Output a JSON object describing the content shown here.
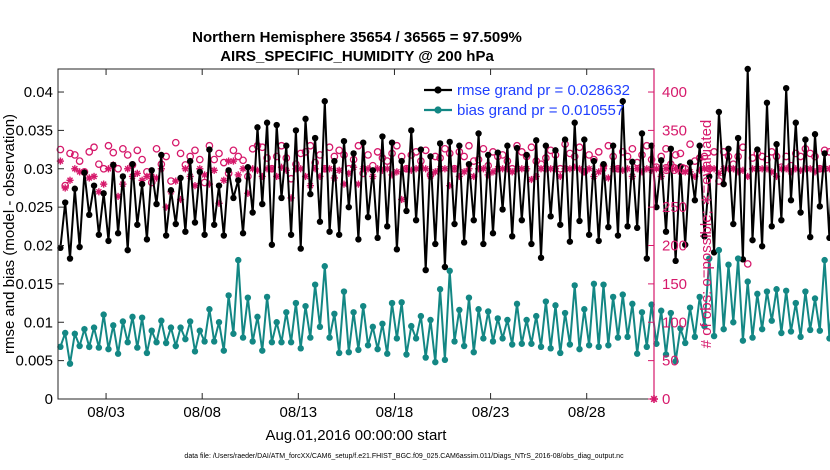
{
  "chart_data": {
    "type": "line",
    "title": "Northern Hemisphere 35654 / 36565 = 97.509%",
    "subtitle": "AIRS_SPECIFIC_HUMIDITY @ 200 hPa",
    "xlabel": "Aug.01,2016 00:00:00 start",
    "ylabel_left": "rmse and bias (model - observation)",
    "ylabel_right": "# of obs: o=possible; ∗=evaluated",
    "footer": "data file: /Users/raeder/DAI/ATM_forcXX/CAM6_setup/f.e21.FHIST_BGC.f09_025.CAM6assim.011/Diags_NTrS_2016-08/obs_diag_output.nc",
    "x_range": [
      0.0,
      31.0
    ],
    "x_ticks": [
      2.5,
      7.5,
      12.5,
      17.5,
      22.5,
      27.5
    ],
    "x_tick_labels": [
      "08/03",
      "08/08",
      "08/13",
      "08/18",
      "08/23",
      "08/28"
    ],
    "ylim_left": [
      0,
      0.043
    ],
    "y_ticks_left": [
      0,
      0.005,
      0.01,
      0.015,
      0.02,
      0.025,
      0.03,
      0.035,
      0.04
    ],
    "y_tick_labels_left": [
      "0",
      "0.005",
      "0.01",
      "0.015",
      "0.02",
      "0.025",
      "0.03",
      "0.035",
      "0.04"
    ],
    "ylim_right": [
      0,
      430
    ],
    "y_ticks_right": [
      0,
      50,
      100,
      150,
      200,
      250,
      300,
      350,
      400
    ],
    "y_tick_labels_right": [
      "0",
      "50",
      "100",
      "150",
      "200",
      "250",
      "300",
      "350",
      "400"
    ],
    "legend": [
      {
        "label": "rmse grand pr = 0.028632",
        "color": "#000000"
      },
      {
        "label": "bias grand pr = 0.010557",
        "color": "#138784"
      }
    ],
    "colors": {
      "rmse": "#000000",
      "bias": "#138784",
      "obs": "#d6196b",
      "axis_right": "#d6196b"
    },
    "series": [
      {
        "name": "rmse",
        "axis": "left",
        "x_start": 0.125,
        "x_step": 0.25,
        "values": [
          0.0197,
          0.0256,
          0.0183,
          0.0274,
          0.0198,
          0.0295,
          0.024,
          0.0278,
          0.0214,
          0.0268,
          0.0206,
          0.0305,
          0.0216,
          0.029,
          0.0194,
          0.0306,
          0.0227,
          0.028,
          0.0208,
          0.0298,
          0.0254,
          0.0318,
          0.0213,
          0.0272,
          0.0228,
          0.0288,
          0.0218,
          0.031,
          0.023,
          0.0296,
          0.0214,
          0.0325,
          0.0227,
          0.0278,
          0.0213,
          0.0298,
          0.0262,
          0.0285,
          0.0216,
          0.0302,
          0.0243,
          0.0354,
          0.0254,
          0.036,
          0.0201,
          0.0357,
          0.0262,
          0.033,
          0.0214,
          0.035,
          0.0196,
          0.0365,
          0.0267,
          0.034,
          0.0231,
          0.0388,
          0.0218,
          0.031,
          0.0214,
          0.0336,
          0.025,
          0.032,
          0.0208,
          0.0334,
          0.0237,
          0.0298,
          0.021,
          0.0342,
          0.0225,
          0.0334,
          0.0195,
          0.031,
          0.0245,
          0.035,
          0.0233,
          0.0325,
          0.0168,
          0.0316,
          0.0202,
          0.0333,
          0.0172,
          0.0335,
          0.0228,
          0.033,
          0.0204,
          0.0306,
          0.0233,
          0.0346,
          0.0202,
          0.0318,
          0.0216,
          0.0321,
          0.0247,
          0.033,
          0.0212,
          0.0327,
          0.0233,
          0.0318,
          0.0202,
          0.0337,
          0.0184,
          0.033,
          0.0238,
          0.0324,
          0.0227,
          0.0338,
          0.0205,
          0.036,
          0.0232,
          0.0338,
          0.0214,
          0.031,
          0.0206,
          0.0306,
          0.0224,
          0.033,
          0.0213,
          0.0388,
          0.0225,
          0.0309,
          0.0223,
          0.0346,
          0.0183,
          0.033,
          0.025,
          0.0311,
          0.0218,
          0.0326,
          0.018,
          0.0303,
          0.0201,
          0.0308,
          0.0259,
          0.033,
          0.0212,
          0.029,
          0.0191,
          0.0374,
          0.028,
          0.0326,
          0.0228,
          0.034,
          0.0182,
          0.043,
          0.0207,
          0.0325,
          0.0199,
          0.0386,
          0.0225,
          0.0332,
          0.0233,
          0.0405,
          0.0259,
          0.036,
          0.0243,
          0.0338,
          0.0211,
          0.0345,
          0.0251,
          0.032,
          0.021,
          0.0374,
          0.0202,
          0.0368,
          0.0269,
          0.032,
          0.0195,
          0.0312,
          0.0237,
          0.0327,
          0.0218,
          0.0325,
          0.0203,
          0.0314,
          0.0222,
          0.0395,
          0.0232,
          0.0318,
          0.0226,
          0.0408,
          0.0225,
          0.0285
        ]
      },
      {
        "name": "bias",
        "axis": "left",
        "x_start": 0.125,
        "x_step": 0.25,
        "values": [
          0.0068,
          0.0086,
          0.0046,
          0.0085,
          0.0069,
          0.0091,
          0.0068,
          0.0093,
          0.0067,
          0.011,
          0.0065,
          0.0096,
          0.0059,
          0.0101,
          0.0074,
          0.0107,
          0.0067,
          0.0106,
          0.006,
          0.0089,
          0.0074,
          0.0102,
          0.0073,
          0.0093,
          0.0069,
          0.0093,
          0.0078,
          0.0101,
          0.0062,
          0.0089,
          0.0075,
          0.0117,
          0.0075,
          0.01,
          0.0063,
          0.0135,
          0.0085,
          0.0181,
          0.008,
          0.0132,
          0.0075,
          0.0107,
          0.0063,
          0.0133,
          0.0074,
          0.01,
          0.0074,
          0.0113,
          0.0074,
          0.0125,
          0.0066,
          0.0121,
          0.008,
          0.0149,
          0.0094,
          0.0173,
          0.008,
          0.0111,
          0.006,
          0.014,
          0.0061,
          0.0113,
          0.0064,
          0.0121,
          0.007,
          0.0094,
          0.0065,
          0.0098,
          0.0059,
          0.0125,
          0.0079,
          0.0126,
          0.0058,
          0.0095,
          0.0079,
          0.0108,
          0.0054,
          0.0103,
          0.0048,
          0.0143,
          0.0051,
          0.0167,
          0.0075,
          0.0116,
          0.0069,
          0.0132,
          0.0061,
          0.0117,
          0.0079,
          0.0114,
          0.0075,
          0.0105,
          0.0079,
          0.0103,
          0.0071,
          0.0124,
          0.0072,
          0.0103,
          0.0072,
          0.0108,
          0.0068,
          0.0127,
          0.0066,
          0.0122,
          0.006,
          0.0112,
          0.0071,
          0.0148,
          0.0065,
          0.0117,
          0.007,
          0.015,
          0.0068,
          0.0149,
          0.007,
          0.0133,
          0.008,
          0.0136,
          0.0081,
          0.0124,
          0.0059,
          0.0113,
          0.0068,
          0.0123,
          0.0072,
          0.0115,
          0.0058,
          0.0112,
          0.0049,
          0.0092,
          0.0073,
          0.0119,
          0.0081,
          0.0133,
          0.0095,
          0.0183,
          0.0082,
          0.0194,
          0.0091,
          0.0175,
          0.01,
          0.0183,
          0.0076,
          0.0153,
          0.008,
          0.0137,
          0.0091,
          0.014,
          0.0102,
          0.0143,
          0.0086,
          0.0141,
          0.0088,
          0.0125,
          0.0081,
          0.014,
          0.009,
          0.0131,
          0.0089,
          0.0181,
          0.0079,
          0.0155,
          0.0092,
          0.0142,
          0.009,
          0.0129,
          0.0077,
          0.0125,
          0.0081,
          0.0141,
          0.0083,
          0.0165,
          0.0082,
          0.0161,
          0.0069,
          0.0154,
          0.0103,
          0.0139,
          0.0078,
          0.0132,
          0.0081,
          0.0151,
          0.0069,
          0.0142,
          0.0083,
          0.0212,
          0.0108,
          0.0094
        ]
      },
      {
        "name": "obs possible",
        "axis": "right",
        "x_start": 0.125,
        "x_step": 0.25,
        "values": [
          325,
          278,
          320,
          318,
          310,
          296,
          322,
          328,
          306,
          300,
          330,
          321,
          300,
          326,
          318,
          305,
          324,
          312,
          296,
          282,
          326,
          306,
          316,
          284,
          334,
          320,
          305,
          316,
          324,
          312,
          282,
          330,
          312,
          320,
          308,
          294,
          324,
          316,
          311,
          290,
          326,
          330,
          328,
          314,
          300,
          316,
          330,
          314,
          287,
          306,
          320,
          322,
          330,
          308,
          318,
          300,
          328,
          316,
          324,
          318,
          300,
          312,
          330,
          294,
          318,
          304,
          322,
          314,
          310,
          320,
          330,
          316,
          300,
          318,
          322,
          310,
          324,
          292,
          316,
          314,
          326,
          320,
          300,
          322,
          316,
          330,
          310,
          312,
          326,
          304,
          322,
          316,
          318,
          310,
          300,
          330,
          322,
          316,
          328,
          310,
          306,
          314,
          324,
          318,
          300,
          332,
          320,
          316,
          328,
          296,
          318,
          312,
          322,
          304,
          330,
          316,
          300,
          322,
          316,
          326,
          308,
          318,
          330,
          312,
          302,
          316,
          326,
          306,
          318,
          320,
          300,
          332,
          310,
          314,
          316,
          300,
          322,
          284,
          322,
          316,
          306,
          316,
          328,
          176,
          314,
          320,
          316,
          312,
          322,
          316,
          302,
          316,
          304,
          320,
          316,
          326,
          320,
          316,
          300,
          324,
          322,
          314,
          318,
          320,
          312,
          316,
          326,
          310,
          322,
          316,
          300,
          320,
          330,
          318,
          314,
          322,
          310,
          316,
          320,
          306,
          312,
          326,
          300,
          318,
          322,
          312,
          322,
          316
        ]
      },
      {
        "name": "obs evaluated",
        "axis": "right",
        "x_start": 0.125,
        "x_step": 0.25,
        "values": [
          310,
          275,
          285,
          300,
          296,
          295,
          288,
          290,
          270,
          280,
          300,
          305,
          264,
          280,
          300,
          290,
          294,
          285,
          290,
          290,
          288,
          300,
          250,
          270,
          284,
          260,
          300,
          290,
          278,
          300,
          292,
          280,
          298,
          255,
          285,
          310,
          310,
          292,
          300,
          268,
          300,
          298,
          290,
          300,
          300,
          290,
          302,
          298,
          262,
          300,
          300,
          290,
          278,
          300,
          290,
          300,
          300,
          288,
          298,
          280,
          294,
          302,
          280,
          300,
          300,
          290,
          300,
          298,
          300,
          292,
          296,
          260,
          300,
          298,
          300,
          302,
          300,
          290,
          296,
          300,
          300,
          278,
          300,
          290,
          296,
          300,
          290,
          300,
          300,
          292,
          296,
          300,
          300,
          300,
          296,
          300,
          300,
          300,
          286,
          290,
          300,
          300,
          300,
          300,
          290,
          300,
          300,
          302,
          300,
          296,
          300,
          290,
          296,
          300,
          288,
          300,
          300,
          298,
          300,
          290,
          300,
          296,
          300,
          298,
          300,
          290,
          300,
          300,
          300,
          296,
          296,
          296,
          290,
          298,
          300,
          300,
          300,
          294,
          300,
          300,
          300,
          296,
          298,
          290,
          300,
          300,
          300,
          300,
          296,
          290,
          300,
          300,
          296,
          300,
          298,
          300,
          300,
          296,
          300,
          300,
          300,
          298,
          290,
          300,
          300,
          300,
          296,
          300,
          300,
          298,
          300,
          300,
          294,
          300,
          296,
          300,
          300,
          300,
          300,
          298,
          296,
          300,
          300,
          300,
          290,
          228,
          300,
          300
        ]
      }
    ]
  }
}
